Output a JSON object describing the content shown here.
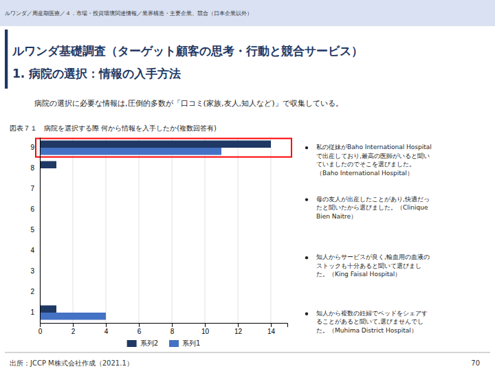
{
  "header": "ルワンダ／周産期医療／４．市場・投資環境関連情報／業界構造・主要企業、競合（日本企業以外）",
  "page_title": [
    "ルワンダ基礎調査（ターゲット顧客の思考・行動と競合サービス）",
    "1. 病院の選択：情報の入手方法"
  ],
  "subtitle": "病院の選択に必要な情報は,圧倒的多数が「口コミ(家族,友人,知人など)」で収集している。",
  "bullet_points": [
    "私の従妹がBaho International Hospital\nで出産しており,最高の医師がいると聞い\nていましたのでそこを選びました。\n（Baho International Hospital）",
    "母の友人が出産したことがあり,快適だっ\nたと聞いたから選びました。（Clinique\nBien Naitre）",
    "知人からサービスが良く,輸血用の血液の\nストックも十分あると聞いて選びまし\nた。（King Faisal Hospital）",
    "知人から複数の妊婦でベッドをシェアす\nることがあると聞いて,選びませんでし\nた。（Muhima District Hospital）"
  ],
  "footer": "出所：JCCP M株式会社作成（2021.1）",
  "page_number": "70",
  "chart_data": {
    "type": "bar",
    "orientation": "horizontal",
    "title": "図表７１　病院を選択する際 何から情報を入手したか(複数回答有)",
    "categories": [
      "1",
      "2",
      "3",
      "4",
      "5",
      "6",
      "7",
      "8",
      "9"
    ],
    "series": [
      {
        "name": "系列2",
        "color": "#1F3864",
        "values": [
          1,
          0,
          0,
          0,
          0,
          0,
          0,
          1,
          14
        ]
      },
      {
        "name": "系列1",
        "color": "#4472C4",
        "values": [
          4,
          0,
          0,
          0,
          0,
          0,
          0,
          0,
          11
        ]
      }
    ],
    "xlim": [
      0,
      15
    ],
    "xticks": [
      0,
      2,
      4,
      6,
      8,
      10,
      12,
      14
    ],
    "grid": true,
    "legend": "bottom"
  }
}
